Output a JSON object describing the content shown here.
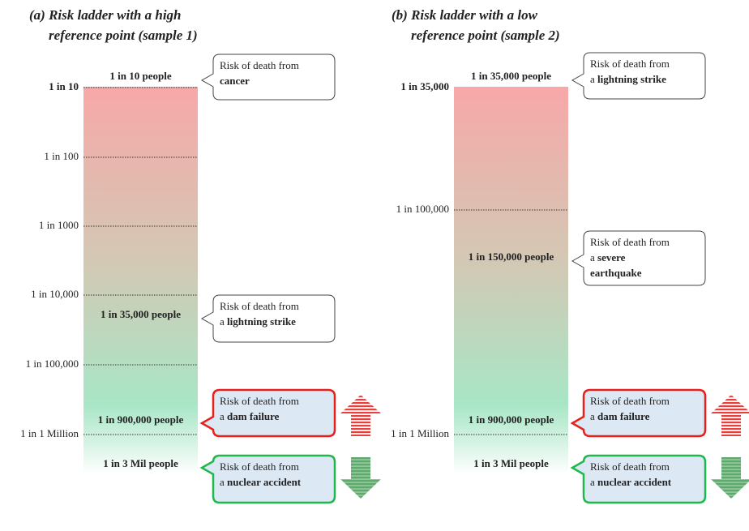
{
  "panels": [
    {
      "title": [
        "(a) Risk ladder with a high",
        "reference point (sample 1)"
      ],
      "ticks": [
        {
          "text": "1 in 10",
          "bold": true
        },
        {
          "text": "1 in 100"
        },
        {
          "text": "1 in 1000"
        },
        {
          "text": "1 in 10,000"
        },
        {
          "text": "1 in 100,000"
        },
        {
          "text": "1 in 1 Million"
        }
      ],
      "points": [
        "1 in 10 people",
        "1 in 35,000 people",
        "1 in 900,000 people",
        "1 in 3 Mil people"
      ],
      "callouts": [
        {
          "lines": [
            [
              {
                "text": "Risk of death from"
              }
            ],
            [
              {
                "text": "cancer",
                "bold": true
              }
            ]
          ]
        },
        {
          "lines": [
            [
              {
                "text": "Risk of death from"
              }
            ],
            [
              {
                "text": "a "
              },
              {
                "text": "lightning strike",
                "bold": true
              }
            ]
          ]
        },
        {
          "lines": [
            [
              {
                "text": "Risk of death from"
              }
            ],
            [
              {
                "text": "a "
              },
              {
                "text": "dam failure",
                "bold": true
              }
            ]
          ]
        },
        {
          "lines": [
            [
              {
                "text": "Risk of death from"
              }
            ],
            [
              {
                "text": "a "
              },
              {
                "text": "nuclear accident",
                "bold": true
              }
            ]
          ]
        }
      ]
    },
    {
      "title": [
        "(b) Risk ladder with a low",
        "reference point (sample 2)"
      ],
      "ticks": [
        {
          "text": "1 in 35,000",
          "bold": true
        },
        {
          "text": "1 in 100,000"
        },
        {
          "text": "1 in 1 Million"
        }
      ],
      "points": [
        "1 in 35,000 people",
        "1 in 150,000 people",
        "1 in 900,000 people",
        "1 in 3 Mil people"
      ],
      "callouts": [
        {
          "lines": [
            [
              {
                "text": "Risk of death from"
              }
            ],
            [
              {
                "text": "a "
              },
              {
                "text": "lightning strike",
                "bold": true
              }
            ]
          ]
        },
        {
          "lines": [
            [
              {
                "text": "Risk of death from"
              }
            ],
            [
              {
                "text": "a "
              },
              {
                "text": "severe",
                "bold": true
              }
            ],
            [
              {
                "text": "earthquake",
                "bold": true
              }
            ]
          ]
        },
        {
          "lines": [
            [
              {
                "text": "Risk of death from"
              }
            ],
            [
              {
                "text": "a "
              },
              {
                "text": "dam failure",
                "bold": true
              }
            ]
          ]
        },
        {
          "lines": [
            [
              {
                "text": "Risk of death from"
              }
            ],
            [
              {
                "text": "a "
              },
              {
                "text": "nuclear accident",
                "bold": true
              }
            ]
          ]
        }
      ]
    }
  ]
}
